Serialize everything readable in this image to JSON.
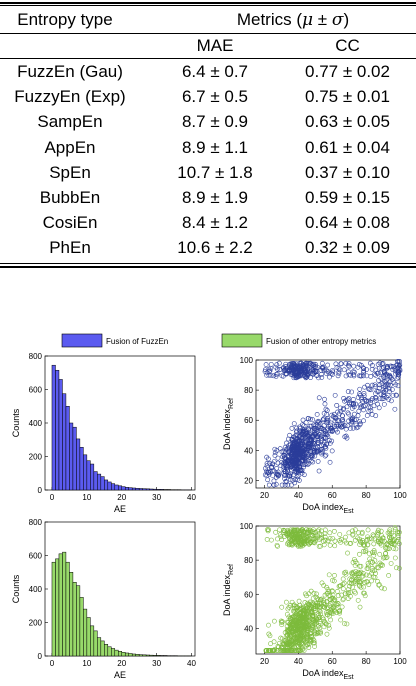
{
  "table": {
    "header": {
      "col1": "Entropy type",
      "metrics_prefix": "Metrics (",
      "metrics_mu": "μ",
      "metrics_pm": " ± ",
      "metrics_sigma": "σ",
      "metrics_suffix": ")",
      "mae": "MAE",
      "cc": "CC"
    },
    "rows": [
      {
        "name": "FuzzEn (Gau)",
        "mae": "6.4 ± 0.7",
        "cc": "0.77 ± 0.02"
      },
      {
        "name": "FuzzyEn (Exp)",
        "mae": "6.7 ± 0.5",
        "cc": "0.75 ± 0.01"
      },
      {
        "name": "SampEn",
        "mae": "8.7 ± 0.9",
        "cc": "0.63 ± 0.05"
      },
      {
        "name": "AppEn",
        "mae": "8.9 ± 1.1",
        "cc": "0.61 ± 0.04"
      },
      {
        "name": "SpEn",
        "mae": "10.7 ± 1.8",
        "cc": "0.37 ± 0.10"
      },
      {
        "name": "BubbEn",
        "mae": "8.9 ± 1.9",
        "cc": "0.59 ± 0.15"
      },
      {
        "name": "CosiEn",
        "mae": "8.4 ± 1.2",
        "cc": "0.64 ± 0.08"
      },
      {
        "name": "PhEn",
        "mae": "10.6 ± 2.2",
        "cc": "0.32 ± 0.09"
      }
    ]
  },
  "legend": {
    "fuzzen": "Fusion of FuzzEn",
    "other": "Fusion of other entropy metrics",
    "fuzzen_color": "#5b5bf0",
    "other_color": "#98d96a"
  },
  "chart_data": [
    {
      "type": "bar",
      "series_name": "Fusion of FuzzEn",
      "xlabel": "AE",
      "ylabel": "Counts",
      "xlim": [
        -2,
        41
      ],
      "ylim": [
        0,
        800
      ],
      "xticks": [
        0,
        10,
        20,
        30,
        40
      ],
      "yticks": [
        0,
        200,
        400,
        600,
        800
      ],
      "bin_width": 1,
      "bin_start": 0,
      "values": [
        745,
        715,
        660,
        575,
        500,
        400,
        375,
        305,
        255,
        210,
        175,
        155,
        110,
        95,
        80,
        60,
        48,
        38,
        30,
        25,
        20,
        16,
        14,
        12,
        10,
        9,
        8,
        7,
        6,
        5,
        4,
        4,
        3,
        3,
        2,
        2,
        2,
        1,
        1,
        1
      ],
      "color": "#5b5bf0"
    },
    {
      "type": "scatter",
      "series_name": "Fusion of FuzzEn",
      "xlabel": "DoA index",
      "xlabel_sub": "Est",
      "ylabel": "DoA index",
      "ylabel_sub": "Ref",
      "xlim": [
        15,
        100
      ],
      "ylim": [
        15,
        100
      ],
      "xticks": [
        20,
        40,
        60,
        80,
        100
      ],
      "yticks": [
        20,
        40,
        60,
        80,
        100
      ],
      "marker_color": "#2b3d9a",
      "point_count": 1100
    },
    {
      "type": "bar",
      "series_name": "Fusion of other entropy metrics",
      "xlabel": "AE",
      "ylabel": "Counts",
      "xlim": [
        -2,
        41
      ],
      "ylim": [
        0,
        800
      ],
      "xticks": [
        0,
        10,
        20,
        30,
        40
      ],
      "yticks": [
        0,
        200,
        400,
        600,
        800
      ],
      "bin_width": 1,
      "bin_start": 0,
      "values": [
        560,
        580,
        610,
        620,
        560,
        500,
        440,
        420,
        350,
        280,
        230,
        180,
        150,
        110,
        90,
        70,
        55,
        45,
        35,
        28,
        22,
        18,
        15,
        12,
        10,
        8,
        7,
        6,
        5,
        4,
        4,
        3,
        3,
        2,
        2,
        2,
        1,
        1,
        1,
        1
      ],
      "color": "#98d96a"
    },
    {
      "type": "scatter",
      "series_name": "Fusion of other entropy metrics",
      "xlabel": "DoA index",
      "xlabel_sub": "Est",
      "ylabel": "DoA index",
      "ylabel_sub": "Ref",
      "xlim": [
        15,
        100
      ],
      "ylim": [
        25,
        100
      ],
      "xticks": [
        20,
        40,
        60,
        80,
        100
      ],
      "yticks": [
        40,
        60,
        80,
        100
      ],
      "marker_color": "#7dbb3c",
      "point_count": 1100
    }
  ]
}
